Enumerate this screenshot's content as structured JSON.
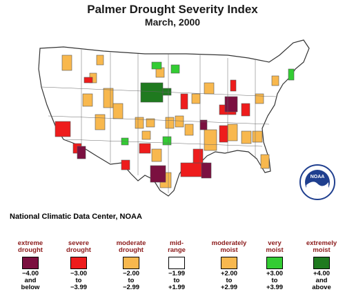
{
  "title": "Palmer Drought Severity Index",
  "subtitle": "March, 2000",
  "credit": "National Climatic Data Center, NOAA",
  "logo_text": "NOAA",
  "colors": {
    "extreme_drought": "#7b1040",
    "severe_drought": "#ee1c1c",
    "moderate_drought": "#f8b84e",
    "mid_range": "#ffffff",
    "moderately_moist": "#f8b84e",
    "very_moist": "#33cc33",
    "extremely_moist": "#1f7a1f"
  },
  "legend": [
    {
      "label": "extreme\ndrought",
      "range": "−4.00\nand\nbelow",
      "color": "#7b1040"
    },
    {
      "label": "severe\ndrought",
      "range": "−3.00\nto\n−3.99",
      "color": "#ee1c1c"
    },
    {
      "label": "moderate\ndrought",
      "range": "−2.00\nto\n−2.99",
      "color": "#f8b84e"
    },
    {
      "label": "mid-\nrange",
      "range": "−1.99\nto\n+1.99",
      "color": "#ffffff"
    },
    {
      "label": "moderately\nmoist",
      "range": "+2.00\nto\n+2.99",
      "color": "#f8b84e"
    },
    {
      "label": "very\nmoist",
      "range": "+3.00\nto\n+3.99",
      "color": "#33cc33"
    },
    {
      "label": "extremely\nmoist",
      "range": "+4.00\nand\nabove",
      "color": "#1f7a1f"
    }
  ]
}
